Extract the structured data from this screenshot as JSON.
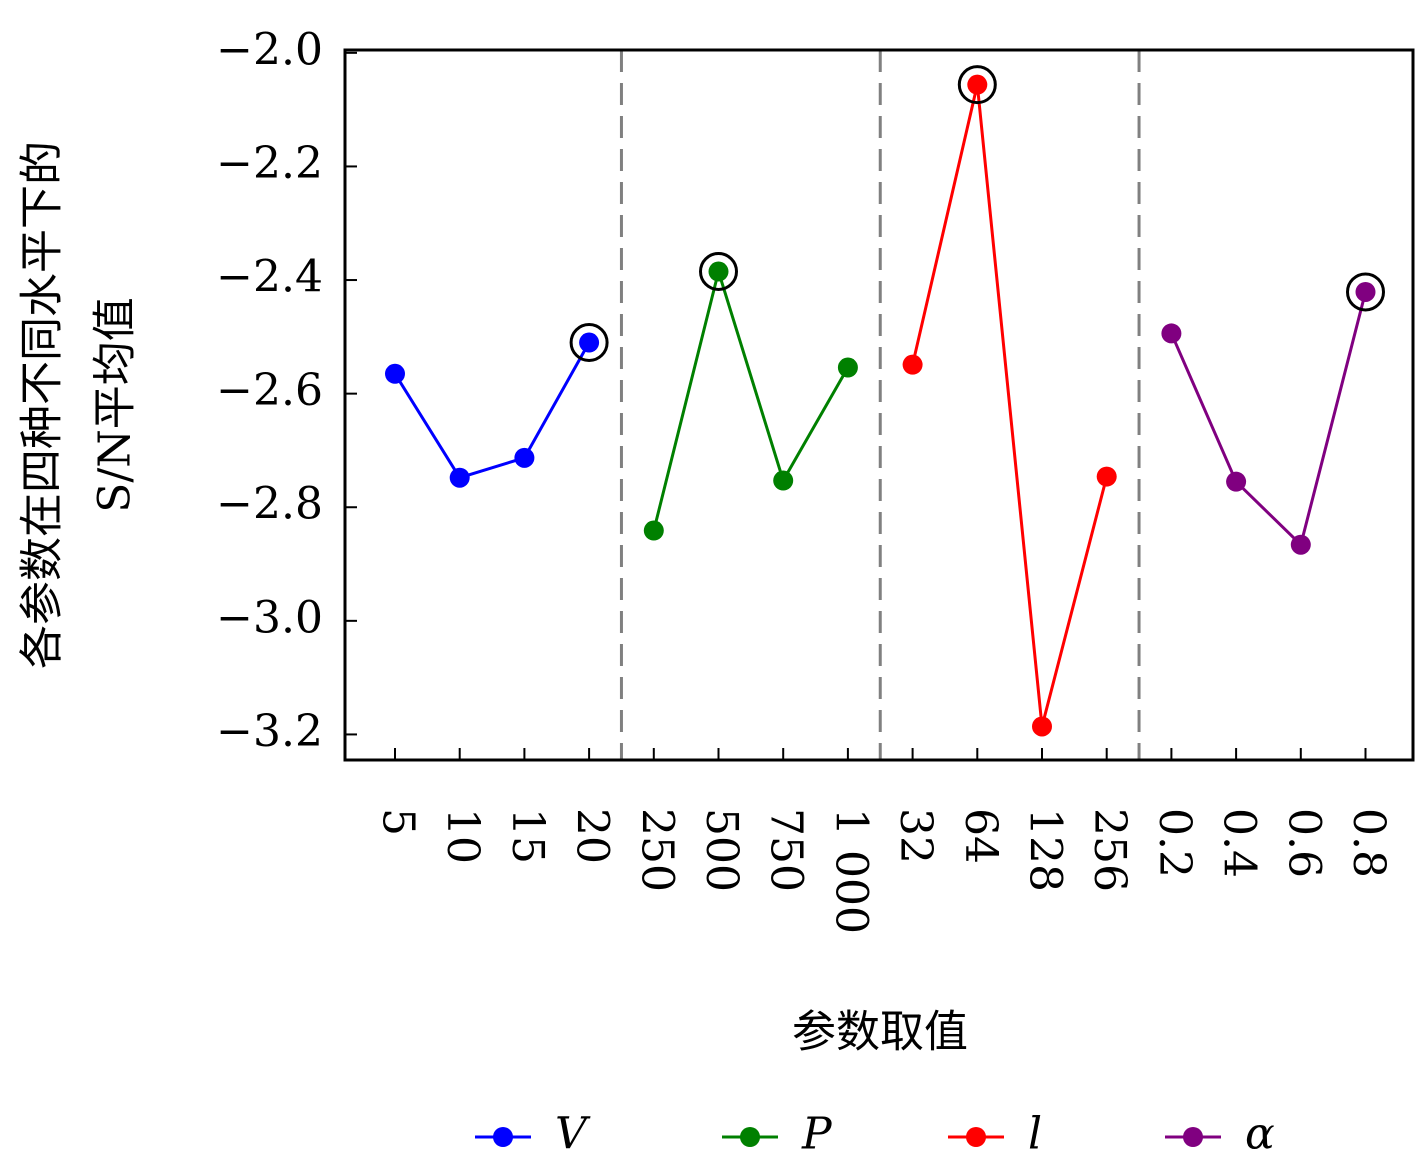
{
  "chart_data": {
    "type": "line",
    "y_label": [
      "各参数在四种不同水平下的",
      "S/N平均值"
    ],
    "x_label": "参数取值",
    "categories": [
      "5",
      "10",
      "15",
      "20",
      "250",
      "500",
      "750",
      "1 000",
      "32",
      "64",
      "128",
      "256",
      "0.2",
      "0.4",
      "0.6",
      "0.8"
    ],
    "series": [
      {
        "name": "V",
        "color": "#0000ff",
        "values": [
          -2.565,
          -2.748,
          -2.713,
          -2.51,
          null,
          null,
          null,
          null,
          null,
          null,
          null,
          null,
          null,
          null,
          null,
          null
        ],
        "highlight_index": 3
      },
      {
        "name": "P",
        "color": "#008000",
        "values": [
          null,
          null,
          null,
          null,
          -2.841,
          -2.385,
          -2.753,
          -2.554,
          null,
          null,
          null,
          null,
          null,
          null,
          null,
          null
        ],
        "highlight_index": 5
      },
      {
        "name": "l",
        "color": "#ff0000",
        "values": [
          null,
          null,
          null,
          null,
          null,
          null,
          null,
          null,
          -2.549,
          -2.056,
          -3.186,
          -2.746,
          null,
          null,
          null,
          null
        ],
        "highlight_index": 9
      },
      {
        "name": "α",
        "color": "#800080",
        "values": [
          null,
          null,
          null,
          null,
          null,
          null,
          null,
          null,
          null,
          null,
          null,
          null,
          -2.494,
          -2.755,
          -2.866,
          -2.421
        ],
        "highlight_index": 15
      }
    ],
    "ylim": [
      -3.245,
      -1.995
    ],
    "yticks": [
      {
        "value": -2.0,
        "label": "−2.0"
      },
      {
        "value": -2.2,
        "label": "−2.2"
      },
      {
        "value": -2.4,
        "label": "−2.4"
      },
      {
        "value": -2.6,
        "label": "−2.6"
      },
      {
        "value": -2.8,
        "label": "−2.8"
      },
      {
        "value": -3.0,
        "label": "−3.0"
      },
      {
        "value": -3.2,
        "label": "−3.2"
      }
    ],
    "legend": "bottom"
  }
}
